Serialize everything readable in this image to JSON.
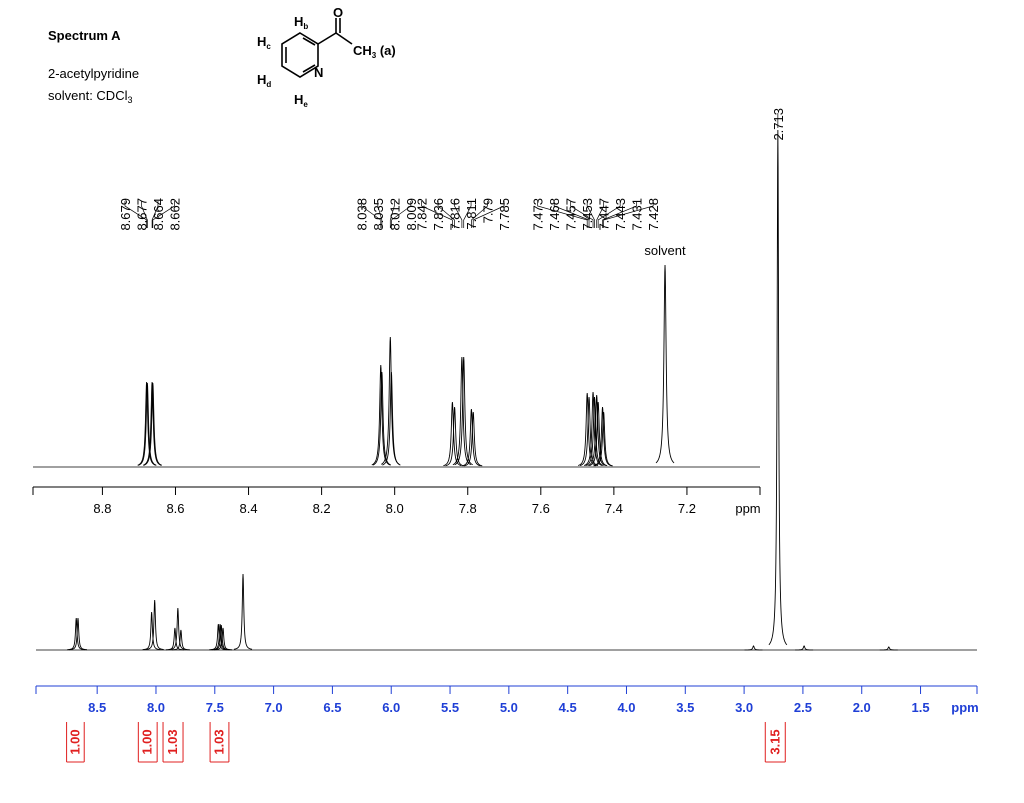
{
  "title": "Spectrum A",
  "compound": "2-acetylpyridine",
  "solvent": {
    "text": "solvent: CDCl",
    "sub": "3"
  },
  "structure": {
    "hb": {
      "text": "H",
      "sub": "b"
    },
    "hc": {
      "text": "H",
      "sub": "c"
    },
    "hd": {
      "text": "H",
      "sub": "d"
    },
    "he": {
      "text": "H",
      "sub": "e"
    },
    "n": "N",
    "o": "O",
    "methyl": {
      "text": "CH",
      "sub": "3",
      "suffix": " (a)"
    }
  },
  "chart_data": [
    {
      "type": "spectrum",
      "xlabel": "ppm",
      "xlim": [
        8.99,
        7.0
      ],
      "xticks": [
        {
          "value": 8.8,
          "label": "8.8"
        },
        {
          "value": 8.6,
          "label": "8.6"
        },
        {
          "value": 8.4,
          "label": "8.4"
        },
        {
          "value": 8.2,
          "label": "8.2"
        },
        {
          "value": 8.0,
          "label": "8.0"
        },
        {
          "value": 7.8,
          "label": "7.8"
        },
        {
          "value": 7.6,
          "label": "7.6"
        },
        {
          "value": 7.4,
          "label": "7.4"
        },
        {
          "value": 7.2,
          "label": "7.2"
        }
      ],
      "ylim": [
        0,
        210
      ],
      "color": "#000000",
      "peaks": {
        "x": [
          8.679,
          8.677,
          8.664,
          8.662,
          8.038,
          8.035,
          8.012,
          8.009,
          7.842,
          7.836,
          7.816,
          7.811,
          7.79,
          7.785,
          7.473,
          7.468,
          7.457,
          7.453,
          7.447,
          7.443,
          7.431,
          7.428
        ],
        "values": [
          85,
          84,
          85,
          84,
          102,
          95,
          130,
          95,
          65,
          60,
          110,
          110,
          58,
          55,
          74,
          70,
          75,
          70,
          72,
          65,
          60,
          55
        ]
      },
      "unlabeled_peaks": {
        "x": [
          7.26
        ],
        "values": [
          202
        ]
      },
      "annotation": "solvent"
    },
    {
      "type": "spectrum",
      "xlabel": "ppm",
      "xlim": [
        9.02,
        1.02
      ],
      "xticks": [
        8.5,
        {
          "value": 8.0,
          "label": "8.0"
        },
        7.5,
        {
          "value": 7.0,
          "label": "7.0"
        },
        6.5,
        {
          "value": 6.0,
          "label": "6.0"
        },
        5.5,
        {
          "value": 5.0,
          "label": "5.0"
        },
        4.5,
        {
          "value": 4.0,
          "label": "4.0"
        },
        3.5,
        {
          "value": 3.0,
          "label": "3.0"
        },
        2.5,
        {
          "value": 2.0,
          "label": "2.0"
        },
        1.5
      ],
      "ylim": [
        0,
        540
      ],
      "color": "#000000",
      "axis_color": "#1f3fd6",
      "peaks": {
        "x": [
          2.713
        ],
        "values": [
          520
        ]
      },
      "unlabeled_peaks": {
        "x": [
          8.678,
          8.663,
          8.037,
          8.011,
          7.839,
          7.814,
          7.788,
          7.47,
          7.455,
          7.445,
          7.43,
          7.26,
          2.92,
          2.49,
          1.77
        ],
        "values": [
          32,
          32,
          38,
          50,
          22,
          42,
          20,
          26,
          26,
          25,
          22,
          76,
          4,
          4,
          3
        ]
      },
      "integrals": {
        "ranges": [
          [
            8.76,
            8.61
          ],
          [
            8.15,
            7.99
          ],
          [
            7.94,
            7.77
          ],
          [
            7.54,
            7.38
          ],
          [
            2.82,
            2.65
          ]
        ],
        "values": [
          {
            "value": 1,
            "label": "1.00"
          },
          {
            "value": 1,
            "label": "1.00"
          },
          {
            "value": 1.03,
            "label": "1.03"
          },
          {
            "value": 1.03,
            "label": "1.03"
          },
          {
            "value": 3.15,
            "label": "3.15"
          }
        ],
        "color": "#e02020"
      }
    }
  ]
}
